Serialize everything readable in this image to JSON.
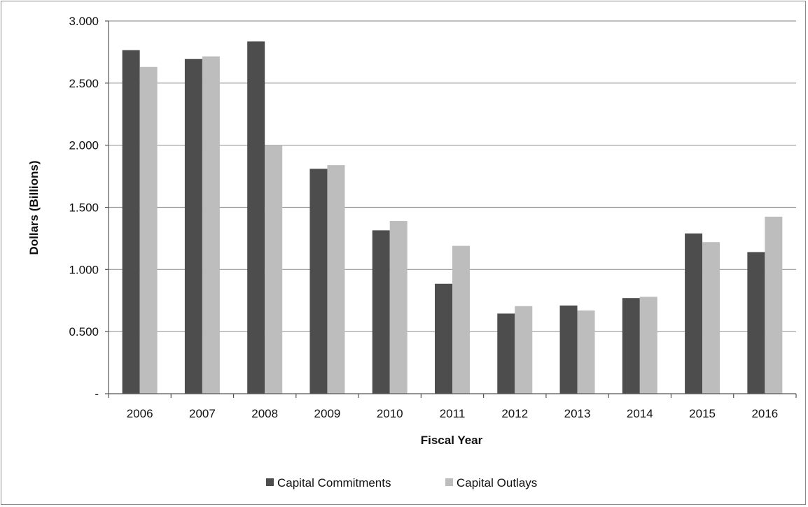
{
  "chart_data": {
    "type": "bar",
    "title": "",
    "xlabel": "Fiscal Year",
    "ylabel": "Dollars (Billions)",
    "categories": [
      "2006",
      "2007",
      "2008",
      "2009",
      "2010",
      "2011",
      "2012",
      "2013",
      "2014",
      "2015",
      "2016"
    ],
    "series": [
      {
        "name": "Capital Commitments",
        "color": "#4d4d4d",
        "values": [
          2.765,
          2.695,
          2.835,
          1.81,
          1.315,
          0.885,
          0.645,
          0.71,
          0.77,
          1.29,
          1.14
        ]
      },
      {
        "name": "Capital Outlays",
        "color": "#bdbdbd",
        "values": [
          2.63,
          2.715,
          2.0,
          1.84,
          1.39,
          1.19,
          0.705,
          0.67,
          0.78,
          1.22,
          1.425
        ]
      }
    ],
    "ylim": [
      0,
      3.0
    ],
    "ytick_values": [
      0,
      0.5,
      1.0,
      1.5,
      2.0,
      2.5,
      3.0
    ],
    "ytick_labels": [
      "-",
      "0.500",
      "1.000",
      "1.500",
      "2.000",
      "2.500",
      "3.000"
    ],
    "grid": true,
    "legend_position": "bottom-center"
  }
}
